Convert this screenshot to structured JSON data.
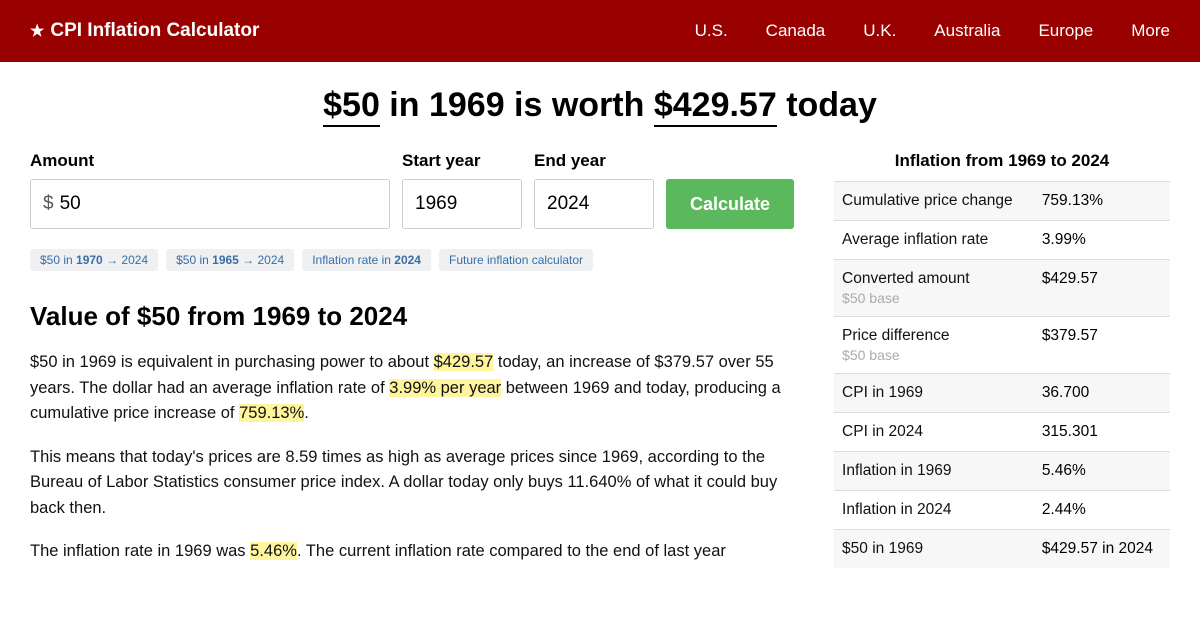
{
  "header": {
    "title": "CPI Inflation Calculator",
    "nav": [
      "U.S.",
      "Canada",
      "U.K.",
      "Australia",
      "Europe",
      "More"
    ]
  },
  "title": {
    "amount": "$50",
    "mid": " in 1969 is worth ",
    "result": "$429.57",
    "tail": " today"
  },
  "form": {
    "amountLabel": "Amount",
    "amountValue": "50",
    "startLabel": "Start year",
    "startValue": "1969",
    "endLabel": "End year",
    "endValue": "2024",
    "button": "Calculate"
  },
  "chips": [
    {
      "pre": "$50 in ",
      "bold": "1970",
      "post": " → 2024"
    },
    {
      "pre": "$50 in ",
      "bold": "1965",
      "post": " → 2024"
    },
    {
      "pre": "Inflation rate in ",
      "bold": "2024",
      "post": ""
    },
    {
      "pre": "Future inflation calculator",
      "bold": "",
      "post": ""
    }
  ],
  "section": {
    "heading": "Value of $50 from 1969 to 2024",
    "p1a": "$50 in 1969 is equivalent in purchasing power to about ",
    "p1h1": "$429.57",
    "p1b": " today, an increase of $379.57 over 55 years. The dollar had an average inflation rate of ",
    "p1h2": "3.99% per year",
    "p1c": " between 1969 and today, producing a cumulative price increase of ",
    "p1h3": "759.13%",
    "p1d": ".",
    "p2": "This means that today's prices are 8.59 times as high as average prices since 1969, according to the Bureau of Labor Statistics consumer price index. A dollar today only buys 11.640% of what it could buy back then.",
    "p3a": "The inflation rate in 1969 was ",
    "p3h1": "5.46%",
    "p3b": ". The current inflation rate compared to the end of last year"
  },
  "stats": {
    "title": "Inflation from 1969 to 2024",
    "rows": [
      {
        "label": "Cumulative price change",
        "sub": "",
        "value": "759.13%"
      },
      {
        "label": "Average inflation rate",
        "sub": "",
        "value": "3.99%"
      },
      {
        "label": "Converted amount",
        "sub": "$50 base",
        "value": "$429.57"
      },
      {
        "label": "Price difference",
        "sub": "$50 base",
        "value": "$379.57"
      },
      {
        "label": "CPI in 1969",
        "sub": "",
        "value": "36.700"
      },
      {
        "label": "CPI in 2024",
        "sub": "",
        "value": "315.301"
      },
      {
        "label": "Inflation in 1969",
        "sub": "",
        "value": "5.46%"
      },
      {
        "label": "Inflation in 2024",
        "sub": "",
        "value": "2.44%"
      },
      {
        "label": "$50 in 1969",
        "sub": "",
        "value": "$429.57 in 2024"
      }
    ]
  }
}
